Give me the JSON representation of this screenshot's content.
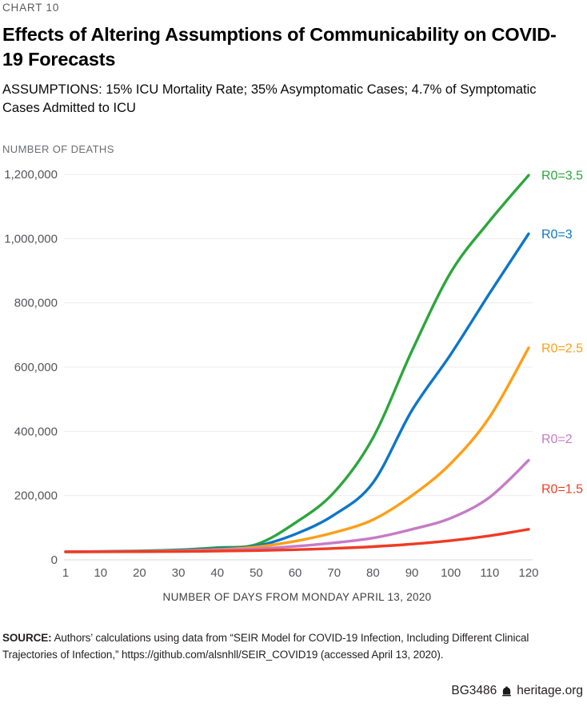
{
  "header": {
    "kicker": "CHART 10",
    "title": "Effects of Altering Assumptions of Communicability on COVID-19 Forecasts",
    "subtitle": "ASSUMPTIONS: 15% ICU Mortality Rate; 35% Asymptomatic Cases; 4.7% of Symptomatic Cases Admitted to ICU"
  },
  "chart_data": {
    "type": "line",
    "ylabel": "NUMBER OF DEATHS",
    "xlabel": "NUMBER OF DAYS FROM MONDAY APRIL 13, 2020",
    "x": [
      1,
      10,
      20,
      30,
      40,
      50,
      60,
      70,
      80,
      90,
      100,
      110,
      120
    ],
    "x_ticks": [
      "1",
      "10",
      "20",
      "30",
      "40",
      "50",
      "60",
      "70",
      "80",
      "90",
      "100",
      "110",
      "120"
    ],
    "y_ticks": [
      "1,200,000",
      "1,000,000",
      "800,000",
      "600,000",
      "400,000",
      "200,000",
      "0"
    ],
    "y_tick_values": [
      1200000,
      1000000,
      800000,
      600000,
      400000,
      200000,
      0
    ],
    "xlim": [
      1,
      120
    ],
    "ylim": [
      0,
      1200000
    ],
    "grid": "horizontal",
    "legend_position": "right-of-line-ends",
    "series": [
      {
        "name": "R0=3.5",
        "color": "#2CA63C",
        "label_dy": 0,
        "values": [
          25000,
          26000,
          28000,
          31000,
          38000,
          48000,
          115000,
          210000,
          380000,
          650000,
          895000,
          1055000,
          1197000
        ]
      },
      {
        "name": "R0=3",
        "color": "#0D76C8",
        "label_dy": 0,
        "values": [
          25000,
          25800,
          27000,
          30000,
          35000,
          43000,
          80000,
          140000,
          240000,
          465000,
          640000,
          830000,
          1015000
        ]
      },
      {
        "name": "R0=2.5",
        "color": "#FF9E16",
        "label_dy": 0,
        "values": [
          25000,
          25500,
          26500,
          28500,
          32000,
          40000,
          58000,
          85000,
          125000,
          200000,
          300000,
          445000,
          660000
        ]
      },
      {
        "name": "R0=2",
        "color": "#C67BC6",
        "label_dy": -27,
        "values": [
          25000,
          25300,
          26000,
          27500,
          30000,
          34000,
          42000,
          53000,
          68000,
          95000,
          130000,
          195000,
          310000
        ]
      },
      {
        "name": "R0=1.5",
        "color": "#EF3B24",
        "label_dy": -51,
        "values": [
          25000,
          25100,
          25500,
          26200,
          27200,
          28800,
          31500,
          35500,
          41000,
          49000,
          60000,
          75000,
          95000
        ]
      }
    ]
  },
  "source": {
    "label": "SOURCE:",
    "text": " Authors’ calculations using data from “SEIR Model for COVID-19 Infection, Including Different Clinical Trajectories of Infection,” https://github.com/alsnhll/SEIR_COVID19 (accessed April 13, 2020)."
  },
  "footer": {
    "doc_id": "BG3486",
    "site": "heritage.org",
    "icon": "heritage-bell-icon"
  },
  "style": {
    "grid_color": "#EBEBEB",
    "baseline_color": "#D9D9D9",
    "tick_text_color": "#55565A",
    "axis_title_color": "#404042"
  }
}
